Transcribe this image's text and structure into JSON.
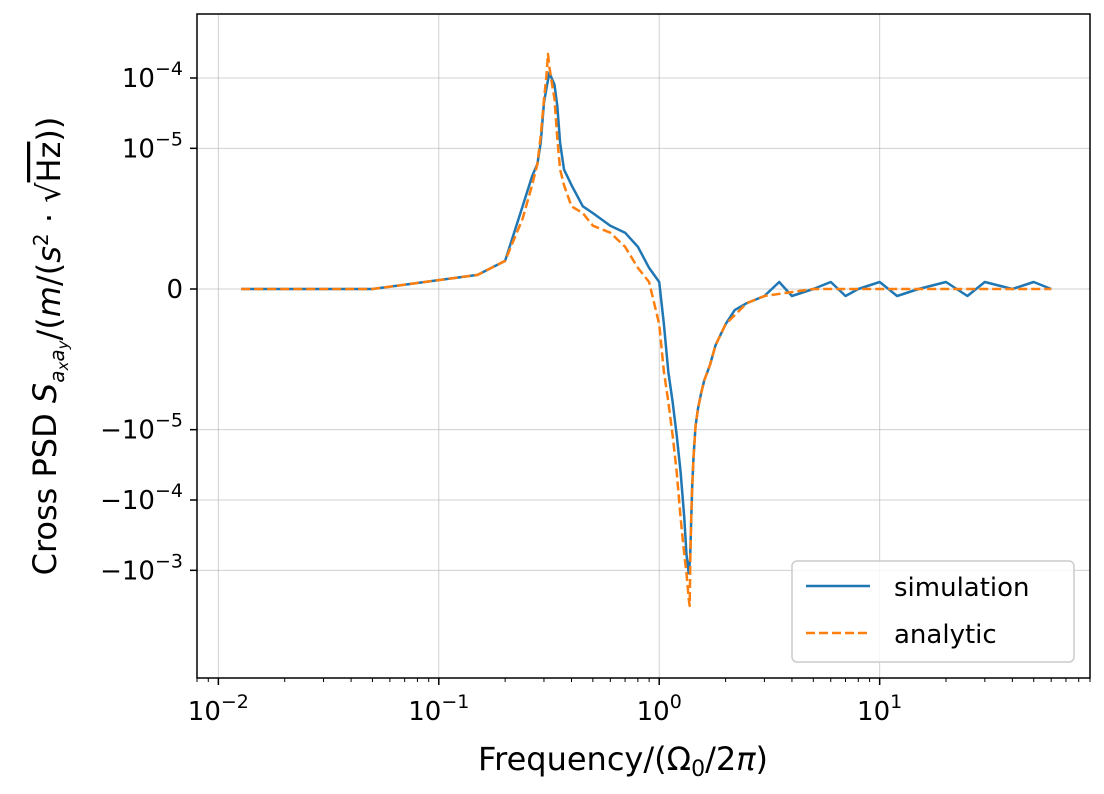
{
  "chart_data": {
    "type": "line",
    "xlabel": "Frequency/(Ω₀/2π)",
    "ylabel": "Cross PSD S_{a_x a_y}/(m/(s²·√Hz))",
    "x_scale": "log",
    "y_scale": "symlog",
    "xlim": [
      0.008,
      90
    ],
    "ylim_display": [
      "-10^-3.5",
      "10^-3.65"
    ],
    "x_ticks": [
      {
        "value": 0.01,
        "base": "10",
        "exp": "−2"
      },
      {
        "value": 0.1,
        "base": "10",
        "exp": "−1"
      },
      {
        "value": 1,
        "base": "10",
        "exp": "0"
      },
      {
        "value": 10,
        "base": "10",
        "exp": "1"
      }
    ],
    "y_ticks": [
      {
        "value": 0.0001,
        "base": "10",
        "exp": "−4",
        "sign": ""
      },
      {
        "value": 1e-05,
        "base": "10",
        "exp": "−5",
        "sign": ""
      },
      {
        "value": 0,
        "base": "0",
        "exp": "",
        "sign": ""
      },
      {
        "value": -1e-05,
        "base": "10",
        "exp": "−5",
        "sign": "−"
      },
      {
        "value": -0.0001,
        "base": "10",
        "exp": "−4",
        "sign": "−"
      },
      {
        "value": -0.001,
        "base": "10",
        "exp": "−3",
        "sign": "−"
      }
    ],
    "grid": true,
    "legend_position": "lower-right",
    "series": [
      {
        "name": "simulation",
        "color": "#1f77b4",
        "style": "solid",
        "x": [
          0.0127,
          0.05,
          0.15,
          0.2,
          0.24,
          0.265,
          0.28,
          0.29,
          0.3,
          0.31,
          0.318,
          0.325,
          0.335,
          0.345,
          0.355,
          0.37,
          0.4,
          0.45,
          0.5,
          0.6,
          0.7,
          0.8,
          0.9,
          1.0,
          1.05,
          1.1,
          1.15,
          1.2,
          1.25,
          1.3,
          1.33,
          1.36,
          1.38,
          1.395,
          1.41,
          1.43,
          1.46,
          1.5,
          1.55,
          1.6,
          1.7,
          1.8,
          2.0,
          2.2,
          2.5,
          3.0,
          3.5,
          4.0,
          5.0,
          6.0,
          7.0,
          8.0,
          10.0,
          12.0,
          15.0,
          20.0,
          25.0,
          30.0,
          40.0,
          50.0,
          60.0
        ],
        "y": [
          0.0,
          0.0,
          2e-07,
          4e-07,
          1.5e-06,
          4e-06,
          6e-06,
          1.2e-05,
          4.5e-05,
          8e-05,
          0.00012,
          0.0001,
          8e-05,
          4e-05,
          1.2e-05,
          5e-06,
          3e-06,
          1.5e-06,
          1.2e-06,
          9e-07,
          8e-07,
          6e-07,
          3e-07,
          1e-07,
          -5e-07,
          -1.5e-06,
          -4e-06,
          -1.2e-05,
          -4e-05,
          -0.00018,
          -0.0006,
          -0.0011,
          -0.0007,
          -0.00022,
          -7e-05,
          -2.5e-05,
          -9e-06,
          -5e-06,
          -3e-06,
          -2e-06,
          -1.2e-06,
          -8e-07,
          -5e-07,
          -3e-07,
          -2e-07,
          -1e-07,
          1e-07,
          -1e-07,
          0.0,
          1e-07,
          -1e-07,
          0.0,
          1e-07,
          -1e-07,
          0.0,
          1e-07,
          -1e-07,
          1e-07,
          0.0,
          1e-07,
          0.0
        ]
      },
      {
        "name": "analytic",
        "color": "#ff7f0e",
        "style": "dashed",
        "x": [
          0.0127,
          0.05,
          0.15,
          0.2,
          0.24,
          0.265,
          0.28,
          0.29,
          0.3,
          0.308,
          0.313,
          0.318,
          0.325,
          0.335,
          0.345,
          0.355,
          0.37,
          0.4,
          0.45,
          0.5,
          0.6,
          0.7,
          0.8,
          0.9,
          1.0,
          1.05,
          1.1,
          1.15,
          1.2,
          1.25,
          1.3,
          1.33,
          1.36,
          1.375,
          1.385,
          1.395,
          1.41,
          1.43,
          1.46,
          1.5,
          1.55,
          1.6,
          1.7,
          1.8,
          2.0,
          2.5,
          3.0,
          5.0,
          10.0,
          20.0,
          60.0
        ],
        "y": [
          0.0,
          0.0,
          2e-07,
          4e-07,
          1e-06,
          3e-06,
          6e-06,
          1.5e-05,
          5e-05,
          0.00011,
          0.00022,
          0.00014,
          9e-05,
          5e-05,
          1.4e-05,
          5e-06,
          3e-06,
          1.5e-06,
          1.2e-06,
          9e-07,
          8e-07,
          6e-07,
          3e-07,
          1e-07,
          -5e-07,
          -1.5e-06,
          -4e-06,
          -1.2e-05,
          -4e-05,
          -0.00018,
          -0.0006,
          -0.0011,
          -0.0025,
          -0.0032,
          -0.0006,
          -0.0002,
          -7e-05,
          -2.5e-05,
          -9e-06,
          -5e-06,
          -3e-06,
          -2e-06,
          -1.2e-06,
          -8e-07,
          -5e-07,
          -2e-07,
          -1e-07,
          0.0,
          0.0,
          0.0,
          0.0
        ]
      }
    ]
  }
}
